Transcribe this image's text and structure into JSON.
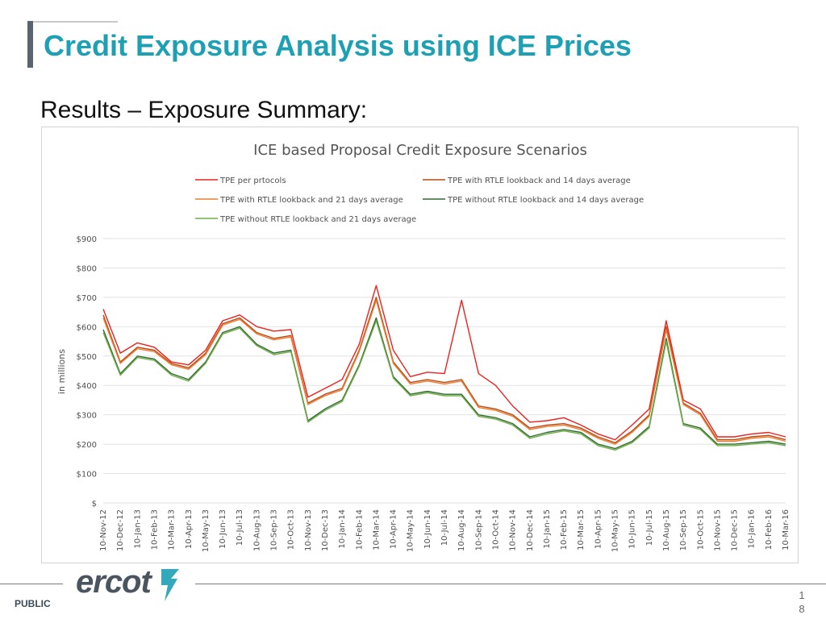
{
  "slide": {
    "title": "Credit Exposure Analysis using ICE Prices",
    "subtitle": "Results – Exposure Summary:",
    "footer_label": "PUBLIC",
    "logo_text": "ercot",
    "page_number_top": "1",
    "page_number_bottom": "8"
  },
  "chart_data": {
    "type": "line",
    "title": "ICE based Proposal Credit Exposure Scenarios",
    "ylabel": "in millions",
    "xlabel": "",
    "ylim": [
      0,
      900
    ],
    "yticks": [
      0,
      100,
      200,
      300,
      400,
      500,
      600,
      700,
      800,
      900
    ],
    "ytick_labels": [
      "$",
      "$100",
      "$200",
      "$300",
      "$400",
      "$500",
      "$600",
      "$700",
      "$800",
      "$900"
    ],
    "grid": true,
    "legend_position": "top",
    "x_tick_labels": [
      "10-Nov-12",
      "10-Dec-12",
      "10-Jan-13",
      "10-Feb-13",
      "10-Mar-13",
      "10-Apr-13",
      "10-May-13",
      "10-Jun-13",
      "10-Jul-13",
      "10-Aug-13",
      "10-Sep-13",
      "10-Oct-13",
      "10-Nov-13",
      "10-Dec-13",
      "10-Jan-14",
      "10-Feb-14",
      "10-Mar-14",
      "10-Apr-14",
      "10-May-14",
      "10-Jun-14",
      "10-Jul-14",
      "10-Aug-14",
      "10-Sep-14",
      "10-Oct-14",
      "10-Nov-14",
      "10-Dec-14",
      "10-Jan-15",
      "10-Feb-15",
      "10-Mar-15",
      "10-Apr-15",
      "10-May-15",
      "10-Jun-15",
      "10-Jul-15",
      "10-Aug-15",
      "10-Sep-15",
      "10-Oct-15",
      "10-Nov-15",
      "10-Dec-15",
      "10-Jan-16",
      "10-Feb-16",
      "10-Mar-16"
    ],
    "x": [
      "10-Nov-12",
      "10-Dec-12",
      "10-Jan-13",
      "10-Feb-13",
      "10-Mar-13",
      "10-Apr-13",
      "10-May-13",
      "10-Jun-13",
      "10-Jul-13",
      "10-Aug-13",
      "10-Sep-13",
      "10-Oct-13",
      "10-Nov-13",
      "10-Dec-13",
      "10-Jan-14",
      "10-Feb-14",
      "10-Mar-14",
      "10-Apr-14",
      "10-May-14",
      "10-Jun-14",
      "10-Jul-14",
      "10-Aug-14",
      "10-Sep-14",
      "10-Oct-14",
      "10-Nov-14",
      "10-Dec-14",
      "10-Jan-15",
      "10-Feb-15",
      "10-Mar-15",
      "10-Apr-15",
      "10-May-15",
      "10-Jun-15",
      "10-Jul-15",
      "10-Aug-15",
      "10-Sep-15",
      "10-Oct-15",
      "10-Nov-15",
      "10-Dec-15",
      "10-Jan-16",
      "10-Feb-16",
      "10-Mar-16"
    ],
    "series": [
      {
        "name": "TPE per prtocols",
        "color": "#e8231f",
        "values": [
          660,
          510,
          545,
          530,
          480,
          470,
          520,
          620,
          640,
          600,
          585,
          590,
          360,
          390,
          420,
          540,
          740,
          520,
          430,
          445,
          440,
          690,
          440,
          400,
          330,
          275,
          280,
          290,
          265,
          235,
          215,
          265,
          320,
          620,
          350,
          320,
          225,
          225,
          235,
          240,
          225
        ]
      },
      {
        "name": "TPE with RTLE lookback and 14 days average",
        "color": "#b84a12",
        "values": [
          640,
          480,
          530,
          520,
          475,
          460,
          510,
          610,
          630,
          580,
          560,
          570,
          340,
          370,
          390,
          520,
          700,
          480,
          410,
          420,
          410,
          420,
          330,
          320,
          300,
          255,
          265,
          270,
          255,
          225,
          205,
          245,
          300,
          600,
          340,
          305,
          215,
          215,
          225,
          230,
          215
        ]
      },
      {
        "name": "TPE with RTLE lookback and 21 days average",
        "color": "#ed7d31",
        "values": [
          630,
          475,
          525,
          515,
          470,
          455,
          505,
          605,
          625,
          575,
          555,
          565,
          335,
          365,
          385,
          515,
          690,
          475,
          405,
          415,
          405,
          415,
          325,
          315,
          295,
          250,
          260,
          265,
          250,
          220,
          200,
          240,
          295,
          590,
          335,
          300,
          210,
          210,
          220,
          225,
          210
        ]
      },
      {
        "name": "TPE without RTLE lookback and 14 days average",
        "color": "#2e6b2e",
        "values": [
          590,
          440,
          500,
          490,
          440,
          420,
          480,
          580,
          600,
          540,
          510,
          520,
          280,
          320,
          350,
          470,
          630,
          430,
          370,
          380,
          370,
          370,
          300,
          290,
          270,
          225,
          240,
          250,
          240,
          200,
          185,
          210,
          260,
          560,
          270,
          255,
          200,
          200,
          205,
          210,
          200
        ]
      },
      {
        "name": "TPE without RTLE lookback and 21 days average",
        "color": "#70ad47",
        "values": [
          580,
          435,
          495,
          485,
          435,
          415,
          475,
          575,
          595,
          535,
          505,
          515,
          275,
          315,
          345,
          465,
          620,
          425,
          365,
          375,
          365,
          365,
          295,
          285,
          265,
          220,
          235,
          245,
          235,
          195,
          180,
          205,
          255,
          550,
          265,
          250,
          195,
          195,
          200,
          205,
          195
        ]
      }
    ]
  }
}
